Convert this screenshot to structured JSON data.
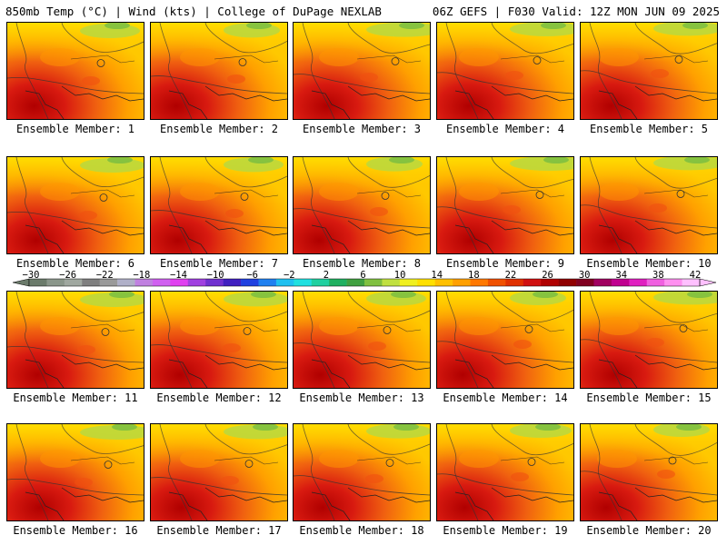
{
  "header": {
    "left_title": "850mb Temp (°C) | Wind (kts) | College of DuPage NEXLAB",
    "right_title": "06Z GEFS | F030 Valid: 12Z MON JUN 09 2025"
  },
  "panels": [
    {
      "label": "Ensemble Member: 1"
    },
    {
      "label": "Ensemble Member: 2"
    },
    {
      "label": "Ensemble Member: 3"
    },
    {
      "label": "Ensemble Member: 4"
    },
    {
      "label": "Ensemble Member: 5"
    },
    {
      "label": "Ensemble Member: 6"
    },
    {
      "label": "Ensemble Member: 7"
    },
    {
      "label": "Ensemble Member: 8"
    },
    {
      "label": "Ensemble Member: 9"
    },
    {
      "label": "Ensemble Member: 10"
    },
    {
      "label": "Ensemble Member: 11"
    },
    {
      "label": "Ensemble Member: 12"
    },
    {
      "label": "Ensemble Member: 13"
    },
    {
      "label": "Ensemble Member: 14"
    },
    {
      "label": "Ensemble Member: 15"
    },
    {
      "label": "Ensemble Member: 16"
    },
    {
      "label": "Ensemble Member: 17"
    },
    {
      "label": "Ensemble Member: 18"
    },
    {
      "label": "Ensemble Member: 19"
    },
    {
      "label": "Ensemble Member: 20"
    }
  ],
  "colorbar": {
    "labels": [
      "−30",
      "−26",
      "−22",
      "−18",
      "−14",
      "−10",
      "−6",
      "−2",
      "2",
      "6",
      "10",
      "14",
      "18",
      "22",
      "26",
      "30",
      "34",
      "38",
      "42"
    ],
    "colors": [
      "#6b7b6b",
      "#8a968a",
      "#a0a8a0",
      "#7f7f7f",
      "#9a9a9a",
      "#b0b0c8",
      "#c080e0",
      "#d060f0",
      "#e040f0",
      "#a040e0",
      "#7030d0",
      "#4020c0",
      "#2040e0",
      "#2080f0",
      "#20c0f0",
      "#20e0e0",
      "#20d0a0",
      "#20b060",
      "#40a040",
      "#80c040",
      "#c0e040",
      "#f0f020",
      "#ffe000",
      "#ffc000",
      "#ffa000",
      "#ff7800",
      "#f05000",
      "#e03000",
      "#d01010",
      "#b00000",
      "#900000",
      "#800020",
      "#a00060",
      "#c00090",
      "#e020c0",
      "#f060e0",
      "#ff90f0",
      "#ffc0ff"
    ]
  }
}
